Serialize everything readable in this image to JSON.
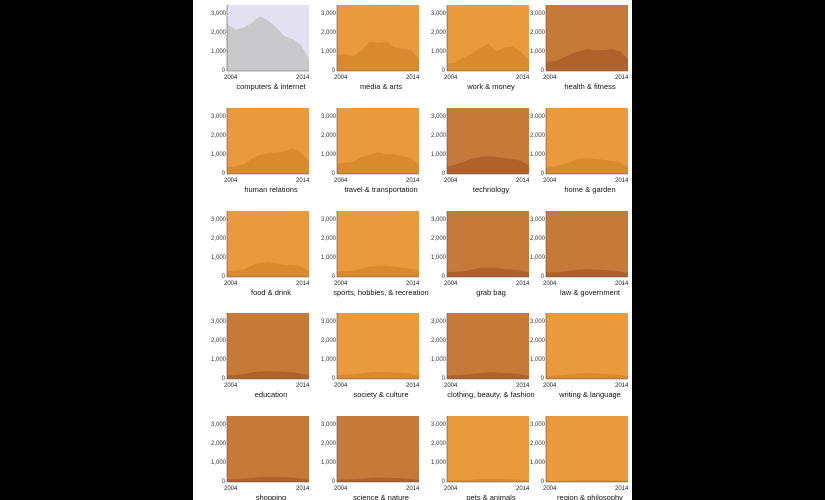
{
  "colors": {
    "background": "#000000",
    "panel": "#ffffff",
    "highlight_area": "#e4e2f0",
    "highlight_fill": "#c9c9cc",
    "light_area": "#e89a3c",
    "light_fill": "#d98a2e",
    "dark_area": "#c57a3a",
    "dark_fill": "#b0622a"
  },
  "chart_data": {
    "type": "area",
    "layout": "small-multiples",
    "x": [
      2004,
      2005,
      2006,
      2007,
      2008,
      2009,
      2010,
      2011,
      2012,
      2013,
      2014
    ],
    "xlabel_start": "2004",
    "xlabel_end": "2014",
    "ylim": [
      0,
      3500
    ],
    "ytick_labels": [
      "3,000",
      "2,000",
      "1,000",
      "0"
    ],
    "ytick_values": [
      3000,
      2000,
      1000,
      0
    ],
    "panels": [
      {
        "name": "computers & internet",
        "style": "highlight",
        "values": [
          2500,
          2200,
          2300,
          2550,
          2900,
          2700,
          2300,
          1850,
          1700,
          1400,
          650
        ]
      },
      {
        "name": "media & arts",
        "style": "light",
        "values": [
          850,
          900,
          780,
          1100,
          1550,
          1500,
          1550,
          1250,
          1200,
          1100,
          650
        ]
      },
      {
        "name": "work & money",
        "style": "light",
        "values": [
          400,
          450,
          700,
          900,
          1200,
          1450,
          1050,
          1250,
          1300,
          1000,
          580
        ]
      },
      {
        "name": "health & fitness",
        "style": "dark",
        "values": [
          480,
          520,
          680,
          900,
          1050,
          1150,
          1100,
          1100,
          1150,
          1050,
          650
        ]
      },
      {
        "name": "human relations",
        "style": "light",
        "values": [
          350,
          400,
          500,
          800,
          1000,
          1100,
          1150,
          1200,
          1350,
          1150,
          700
        ]
      },
      {
        "name": "travel & transportation",
        "style": "light",
        "values": [
          550,
          600,
          650,
          900,
          1000,
          1150,
          1050,
          1050,
          950,
          850,
          500
        ]
      },
      {
        "name": "technology",
        "style": "dark",
        "values": [
          400,
          500,
          650,
          800,
          900,
          950,
          900,
          850,
          800,
          700,
          450
        ]
      },
      {
        "name": "home & garden",
        "style": "light",
        "values": [
          350,
          400,
          500,
          650,
          800,
          850,
          800,
          750,
          700,
          600,
          400
        ]
      },
      {
        "name": "food & drink",
        "style": "light",
        "values": [
          300,
          350,
          400,
          600,
          750,
          800,
          700,
          650,
          650,
          550,
          350
        ]
      },
      {
        "name": "sports, hobbies, & recreation",
        "style": "light",
        "values": [
          300,
          320,
          350,
          450,
          550,
          600,
          600,
          550,
          500,
          450,
          300
        ]
      },
      {
        "name": "grab bag",
        "style": "dark",
        "values": [
          250,
          280,
          300,
          400,
          480,
          500,
          480,
          420,
          400,
          350,
          230
        ]
      },
      {
        "name": "law & government",
        "style": "dark",
        "values": [
          250,
          260,
          280,
          350,
          400,
          420,
          400,
          380,
          350,
          300,
          200
        ]
      },
      {
        "name": "education",
        "style": "dark",
        "values": [
          200,
          220,
          250,
          350,
          400,
          420,
          400,
          380,
          350,
          300,
          200
        ]
      },
      {
        "name": "society & culture",
        "style": "light",
        "values": [
          200,
          220,
          250,
          300,
          350,
          380,
          360,
          340,
          320,
          280,
          180
        ]
      },
      {
        "name": "clothing, beauty, & fashion",
        "style": "dark",
        "values": [
          180,
          200,
          220,
          280,
          320,
          350,
          340,
          320,
          300,
          250,
          170
        ]
      },
      {
        "name": "writing & language",
        "style": "light",
        "values": [
          150,
          170,
          200,
          250,
          300,
          320,
          300,
          280,
          260,
          220,
          150
        ]
      },
      {
        "name": "shopping",
        "style": "dark",
        "values": [
          150,
          160,
          180,
          220,
          260,
          280,
          270,
          250,
          230,
          200,
          130
        ]
      },
      {
        "name": "science & nature",
        "style": "dark",
        "values": [
          120,
          130,
          150,
          180,
          220,
          240,
          230,
          220,
          200,
          170,
          110
        ]
      },
      {
        "name": "pets & animals",
        "style": "light",
        "values": [
          80,
          90,
          100,
          120,
          150,
          170,
          160,
          150,
          140,
          120,
          80
        ]
      },
      {
        "name": "region & philosophy",
        "style": "light",
        "values": [
          50,
          55,
          60,
          70,
          90,
          100,
          95,
          90,
          85,
          70,
          50
        ]
      }
    ]
  }
}
